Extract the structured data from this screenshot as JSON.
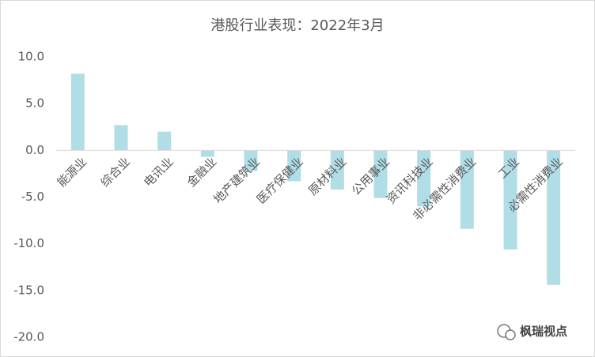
{
  "chart_data": {
    "type": "bar",
    "title": "港股行业表现：2022年3月",
    "categories": [
      "能源业",
      "综合业",
      "电讯业",
      "金融业",
      "地产建筑业",
      "医疗保健业",
      "原材料业",
      "公用事业",
      "资讯科技业",
      "非必需性消费业",
      "工业",
      "必需性消费业"
    ],
    "values": [
      8.2,
      2.7,
      2.0,
      -0.7,
      -2.2,
      -3.3,
      -4.2,
      -5.1,
      -6.0,
      -8.4,
      -10.6,
      -14.4
    ],
    "color": "#b0dde6",
    "ylim": [
      -20,
      10
    ],
    "yticks": [
      {
        "value": 10,
        "label": "10.0"
      },
      {
        "value": 5,
        "label": "5.0"
      },
      {
        "value": 0,
        "label": "0.0"
      },
      {
        "value": -5,
        "label": "-5.0"
      },
      {
        "value": -10,
        "label": "-10.0"
      },
      {
        "value": -15,
        "label": "-15.0"
      },
      {
        "value": -20,
        "label": "-20.0"
      }
    ],
    "grid": false
  },
  "watermark": "枫瑞视点"
}
